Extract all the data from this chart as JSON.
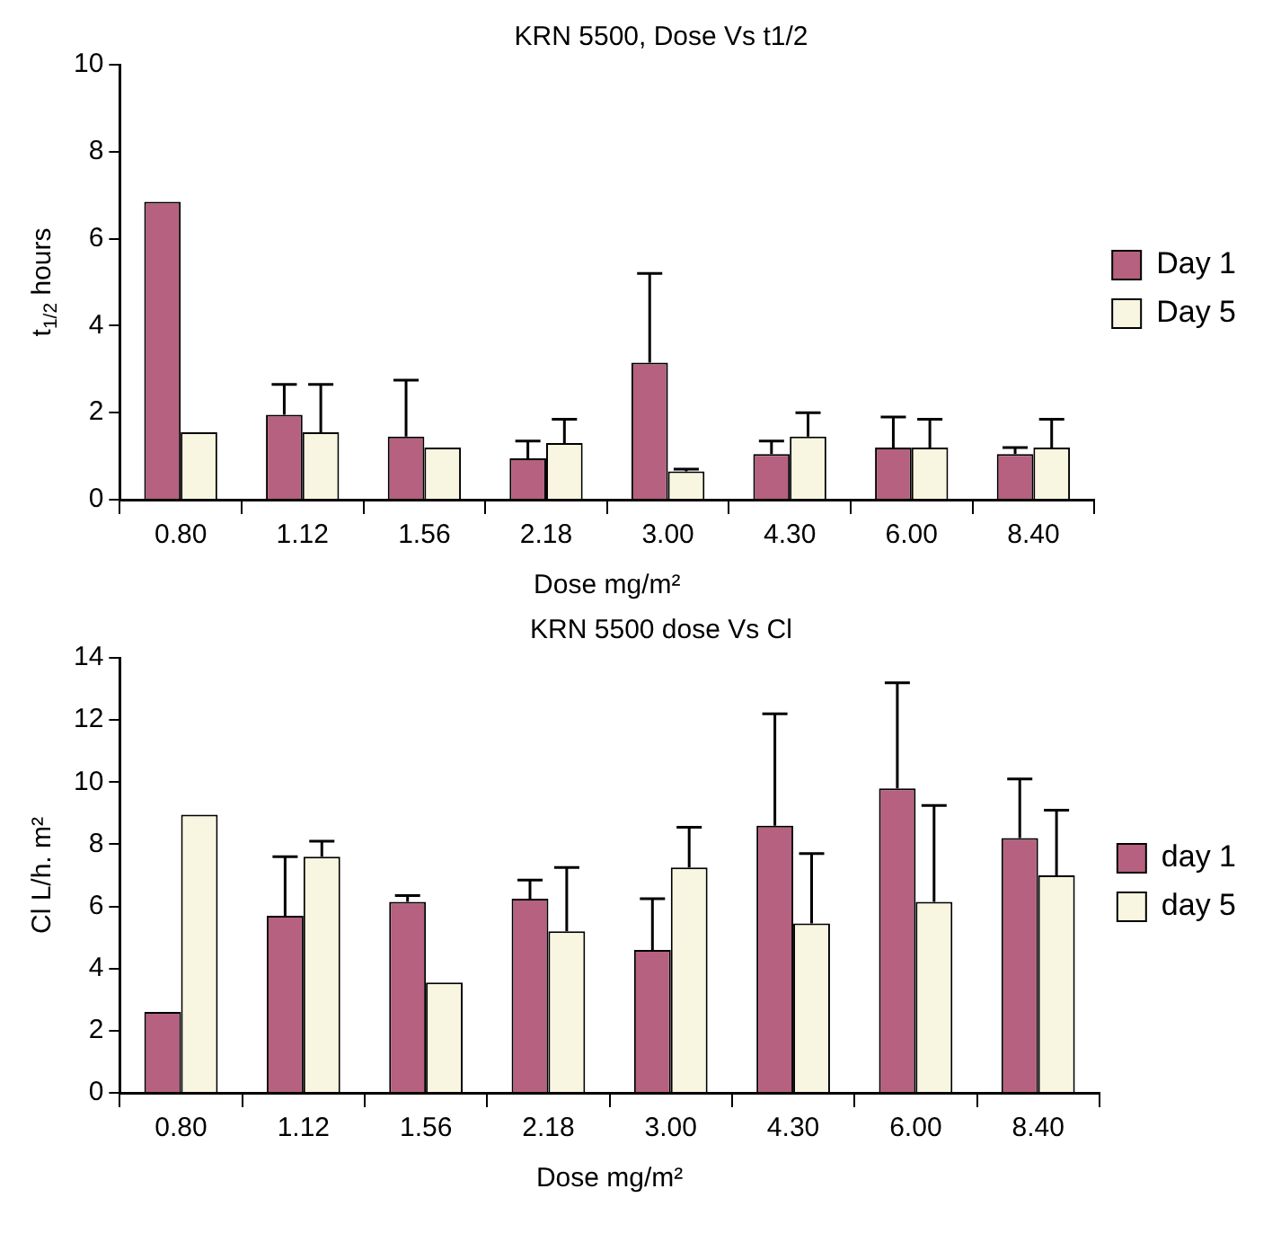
{
  "chart_data": [
    {
      "type": "bar",
      "title": "KRN 5500, Dose Vs t1/2",
      "xlabel": "Dose mg/m²",
      "ylabel": "t$_{1/2}$ hours",
      "categories": [
        "0.80",
        "1.12",
        "1.56",
        "2.18",
        "3.00",
        "4.30",
        "6.00",
        "8.40"
      ],
      "series": [
        {
          "name": "Day 1",
          "color": "#b5617f",
          "values": [
            6.85,
            1.95,
            1.45,
            0.95,
            3.15,
            1.05,
            1.2,
            1.05
          ],
          "errors": [
            null,
            [
              1.95,
              2.65
            ],
            [
              1.45,
              2.75
            ],
            [
              0.95,
              1.35
            ],
            [
              3.15,
              5.2
            ],
            [
              1.05,
              1.35
            ],
            [
              1.2,
              1.9
            ],
            [
              1.05,
              1.2
            ]
          ]
        },
        {
          "name": "Day 5",
          "color": "#f8f6e0",
          "values": [
            1.55,
            1.55,
            1.2,
            1.3,
            0.65,
            1.45,
            1.2,
            1.2
          ],
          "errors": [
            null,
            [
              1.55,
              2.65
            ],
            null,
            [
              1.3,
              1.85
            ],
            [
              0.65,
              0.7
            ],
            [
              1.45,
              2.0
            ],
            [
              1.2,
              1.85
            ],
            [
              1.2,
              1.85
            ]
          ]
        }
      ],
      "ylim": [
        0,
        10
      ],
      "yticks": [
        0,
        2,
        4,
        6,
        8,
        10
      ],
      "grid": false,
      "legend": "right"
    },
    {
      "type": "bar",
      "title": "KRN 5500 dose Vs Cl",
      "xlabel": "Dose mg/m²",
      "ylabel": "Cl L/h. m²",
      "categories": [
        "0.80",
        "1.12",
        "1.56",
        "2.18",
        "3.00",
        "4.30",
        "6.00",
        "8.40"
      ],
      "series": [
        {
          "name": "day 1",
          "color": "#b5617f",
          "values": [
            2.6,
            5.7,
            6.15,
            6.25,
            4.6,
            8.6,
            9.8,
            8.2
          ],
          "errors": [
            null,
            [
              5.7,
              7.6
            ],
            [
              6.15,
              6.35
            ],
            [
              6.25,
              6.85
            ],
            [
              4.6,
              6.25
            ],
            [
              8.6,
              12.2
            ],
            [
              9.8,
              13.2
            ],
            [
              8.2,
              10.1
            ]
          ]
        },
        {
          "name": "day 5",
          "color": "#f8f6e0",
          "values": [
            8.95,
            7.6,
            3.55,
            5.2,
            7.25,
            5.45,
            6.15,
            7.0
          ],
          "errors": [
            null,
            [
              7.6,
              8.1
            ],
            null,
            [
              5.2,
              7.25
            ],
            [
              7.25,
              8.55
            ],
            [
              5.45,
              7.7
            ],
            [
              6.15,
              9.25
            ],
            [
              7.0,
              9.1
            ]
          ]
        }
      ],
      "ylim": [
        0,
        14
      ],
      "yticks": [
        0,
        2,
        4,
        6,
        8,
        10,
        12,
        14
      ],
      "grid": false,
      "legend": "right"
    }
  ]
}
